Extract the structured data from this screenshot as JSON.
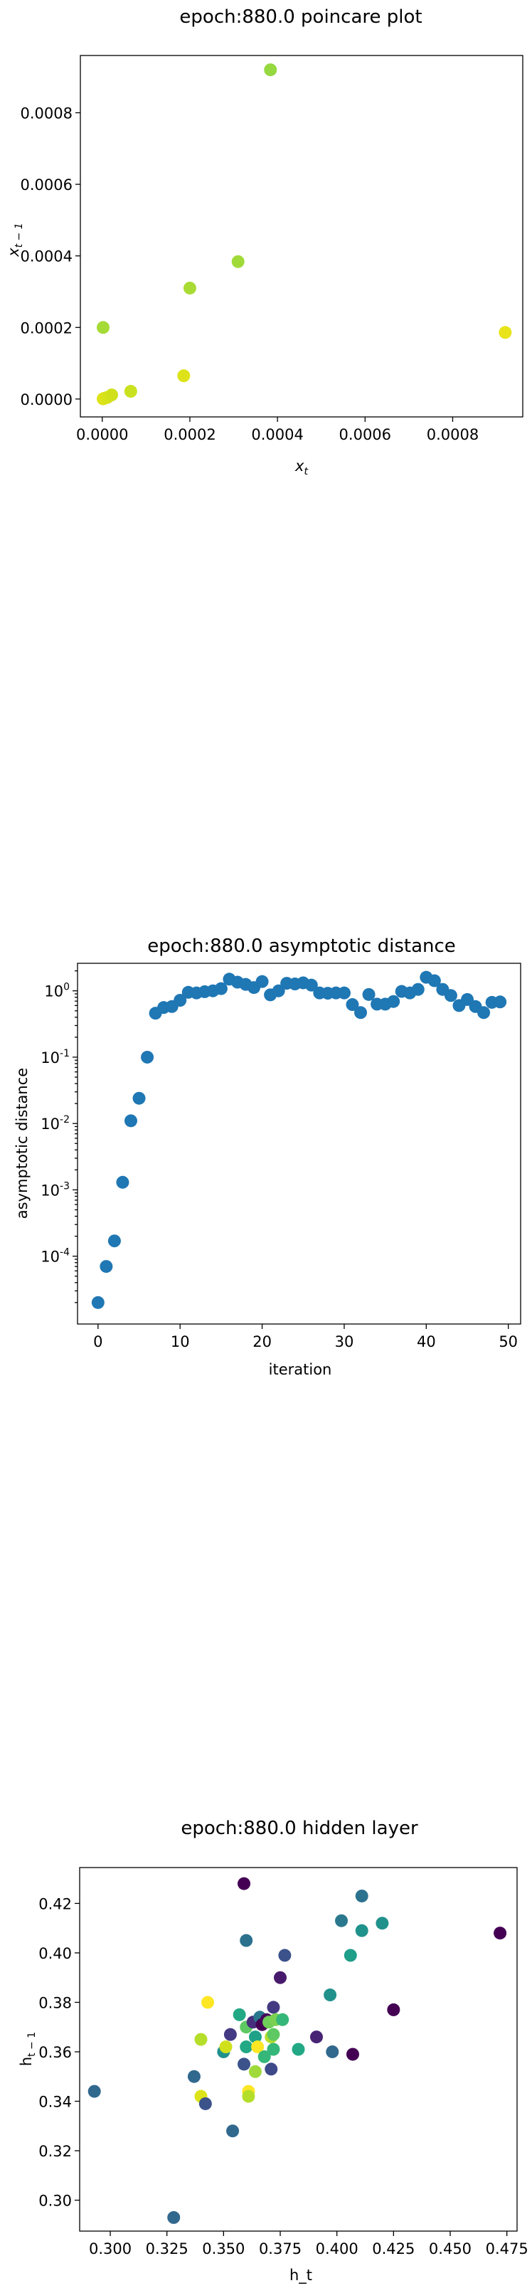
{
  "chart_data": [
    {
      "type": "scatter",
      "title": "epoch:880.0 poincare plot",
      "xlabel": "x_t",
      "ylabel": "x_{t-1}",
      "xlim": [
        -5e-05,
        0.00096
      ],
      "ylim": [
        -5e-05,
        0.00096
      ],
      "xticks": [
        "0.0000",
        "0.0002",
        "0.0004",
        "0.0006",
        "0.0008"
      ],
      "xtick_values": [
        0,
        0.0002,
        0.0004,
        0.0006,
        0.0008
      ],
      "yticks": [
        "0.0000",
        "0.0002",
        "0.0004",
        "0.0006",
        "0.0008"
      ],
      "ytick_values": [
        0,
        0.0002,
        0.0004,
        0.0006,
        0.0008
      ],
      "grid": false,
      "points": [
        {
          "x": 2e-06,
          "y": 5e-07,
          "color": "#dde318"
        },
        {
          "x": 4.5e-06,
          "y": 2e-06,
          "color": "#dde318"
        },
        {
          "x": 1.15e-05,
          "y": 4.5e-06,
          "color": "#d8e219"
        },
        {
          "x": 2.15e-05,
          "y": 1.15e-05,
          "color": "#d0e11c"
        },
        {
          "x": 6.5e-05,
          "y": 2.15e-05,
          "color": "#cae11f"
        },
        {
          "x": 0.000186,
          "y": 6.5e-05,
          "color": "#dde318"
        },
        {
          "x": 0.00092,
          "y": 0.000186,
          "color": "#e8e419"
        },
        {
          "x": 2e-06,
          "y": 0.0002,
          "color": "#a5db36"
        },
        {
          "x": 0.0002,
          "y": 0.00031,
          "color": "#a8db34"
        },
        {
          "x": 0.00031,
          "y": 0.000384,
          "color": "#a0da39"
        },
        {
          "x": 0.000384,
          "y": 0.00092,
          "color": "#95d840"
        }
      ]
    },
    {
      "type": "scatter",
      "title": "epoch:880.0 asymptotic distance",
      "xlabel": "iteration",
      "ylabel": "asymptotic distance",
      "yscale": "log",
      "xlim": [
        -2.5,
        51.5
      ],
      "ylim": [
        9.5e-06,
        2.6
      ],
      "xticks": [
        "0",
        "10",
        "20",
        "30",
        "40",
        "50"
      ],
      "xtick_values": [
        0,
        10,
        20,
        30,
        40,
        50
      ],
      "yticks": [
        "10^{-4}",
        "10^{-3}",
        "10^{-2}",
        "10^{-1}",
        "10^{0}"
      ],
      "ytick_values": [
        0.0001,
        0.001,
        0.01,
        0.1,
        1
      ],
      "grid": false,
      "color": "#1f77b4",
      "x": [
        0,
        1,
        2,
        3,
        4,
        5,
        6,
        7,
        8,
        9,
        10,
        11,
        12,
        13,
        14,
        15,
        16,
        17,
        18,
        19,
        20,
        21,
        22,
        23,
        24,
        25,
        26,
        27,
        28,
        29,
        30,
        31,
        32,
        33,
        34,
        35,
        36,
        37,
        38,
        39,
        40,
        41,
        42,
        43,
        44,
        45,
        46,
        47,
        48,
        49
      ],
      "y": [
        2e-05,
        7e-05,
        0.00017,
        0.0013,
        0.011,
        0.024,
        0.1,
        0.46,
        0.56,
        0.58,
        0.72,
        0.95,
        0.93,
        0.97,
        1.0,
        1.08,
        1.5,
        1.35,
        1.25,
        1.12,
        1.38,
        0.87,
        1.0,
        1.3,
        1.27,
        1.32,
        1.22,
        0.93,
        0.92,
        0.93,
        0.93,
        0.62,
        0.47,
        0.88,
        0.63,
        0.63,
        0.69,
        0.98,
        0.93,
        1.05,
        1.6,
        1.42,
        1.05,
        0.85,
        0.6,
        0.74,
        0.58,
        0.47,
        0.67,
        0.68
      ]
    },
    {
      "type": "scatter",
      "title": "epoch:880.0 hidden layer",
      "xlabel": "h_t",
      "ylabel": "h_{t-1}",
      "xlim": [
        0.2865,
        0.4795
      ],
      "ylim": [
        0.2875,
        0.4345
      ],
      "xticks": [
        "0.300",
        "0.325",
        "0.350",
        "0.375",
        "0.400",
        "0.425",
        "0.450",
        "0.475"
      ],
      "xtick_values": [
        0.3,
        0.325,
        0.35,
        0.375,
        0.4,
        0.425,
        0.45,
        0.475
      ],
      "yticks": [
        "0.30",
        "0.32",
        "0.34",
        "0.36",
        "0.38",
        "0.40",
        "0.42"
      ],
      "ytick_values": [
        0.3,
        0.32,
        0.34,
        0.36,
        0.38,
        0.4,
        0.42
      ],
      "grid": false,
      "points": [
        {
          "x": 0.293,
          "y": 0.344,
          "color": "#31688e"
        },
        {
          "x": 0.328,
          "y": 0.293,
          "color": "#31688e"
        },
        {
          "x": 0.337,
          "y": 0.35,
          "color": "#31688e"
        },
        {
          "x": 0.34,
          "y": 0.365,
          "color": "#b5de2b"
        },
        {
          "x": 0.34,
          "y": 0.342,
          "color": "#dde318"
        },
        {
          "x": 0.342,
          "y": 0.339,
          "color": "#3b528b"
        },
        {
          "x": 0.343,
          "y": 0.38,
          "color": "#fde725"
        },
        {
          "x": 0.35,
          "y": 0.36,
          "color": "#21918c"
        },
        {
          "x": 0.351,
          "y": 0.362,
          "color": "#d0e11c"
        },
        {
          "x": 0.353,
          "y": 0.367,
          "color": "#443983"
        },
        {
          "x": 0.354,
          "y": 0.328,
          "color": "#31688e"
        },
        {
          "x": 0.357,
          "y": 0.375,
          "color": "#22a884"
        },
        {
          "x": 0.359,
          "y": 0.428,
          "color": "#440154"
        },
        {
          "x": 0.359,
          "y": 0.355,
          "color": "#3b528b"
        },
        {
          "x": 0.36,
          "y": 0.405,
          "color": "#2c728e"
        },
        {
          "x": 0.36,
          "y": 0.37,
          "color": "#5ec962"
        },
        {
          "x": 0.36,
          "y": 0.362,
          "color": "#22a884"
        },
        {
          "x": 0.361,
          "y": 0.344,
          "color": "#fde725"
        },
        {
          "x": 0.361,
          "y": 0.342,
          "color": "#b5de2b"
        },
        {
          "x": 0.363,
          "y": 0.372,
          "color": "#472f7d"
        },
        {
          "x": 0.364,
          "y": 0.366,
          "color": "#1fa188"
        },
        {
          "x": 0.364,
          "y": 0.352,
          "color": "#9fda3a"
        },
        {
          "x": 0.365,
          "y": 0.362,
          "color": "#fde725"
        },
        {
          "x": 0.366,
          "y": 0.374,
          "color": "#2a788e"
        },
        {
          "x": 0.367,
          "y": 0.371,
          "color": "#440154"
        },
        {
          "x": 0.368,
          "y": 0.358,
          "color": "#35b779"
        },
        {
          "x": 0.369,
          "y": 0.373,
          "color": "#46085c"
        },
        {
          "x": 0.37,
          "y": 0.372,
          "color": "#6ece58"
        },
        {
          "x": 0.371,
          "y": 0.366,
          "color": "#b5de2b"
        },
        {
          "x": 0.371,
          "y": 0.353,
          "color": "#3e4989"
        },
        {
          "x": 0.372,
          "y": 0.378,
          "color": "#443983"
        },
        {
          "x": 0.372,
          "y": 0.367,
          "color": "#5ec962"
        },
        {
          "x": 0.372,
          "y": 0.361,
          "color": "#35b779"
        },
        {
          "x": 0.373,
          "y": 0.373,
          "color": "#7ad151"
        },
        {
          "x": 0.375,
          "y": 0.39,
          "color": "#481a6c"
        },
        {
          "x": 0.376,
          "y": 0.373,
          "color": "#35b779"
        },
        {
          "x": 0.377,
          "y": 0.399,
          "color": "#3b528b"
        },
        {
          "x": 0.383,
          "y": 0.361,
          "color": "#22a884"
        },
        {
          "x": 0.391,
          "y": 0.366,
          "color": "#482475"
        },
        {
          "x": 0.397,
          "y": 0.383,
          "color": "#21918c"
        },
        {
          "x": 0.398,
          "y": 0.36,
          "color": "#31688e"
        },
        {
          "x": 0.402,
          "y": 0.413,
          "color": "#2a788e"
        },
        {
          "x": 0.406,
          "y": 0.399,
          "color": "#1f9e89"
        },
        {
          "x": 0.407,
          "y": 0.359,
          "color": "#440154"
        },
        {
          "x": 0.411,
          "y": 0.423,
          "color": "#2c728e"
        },
        {
          "x": 0.411,
          "y": 0.409,
          "color": "#20928c"
        },
        {
          "x": 0.42,
          "y": 0.412,
          "color": "#21918c"
        },
        {
          "x": 0.425,
          "y": 0.377,
          "color": "#440154"
        },
        {
          "x": 0.472,
          "y": 0.408,
          "color": "#440154"
        }
      ]
    }
  ]
}
